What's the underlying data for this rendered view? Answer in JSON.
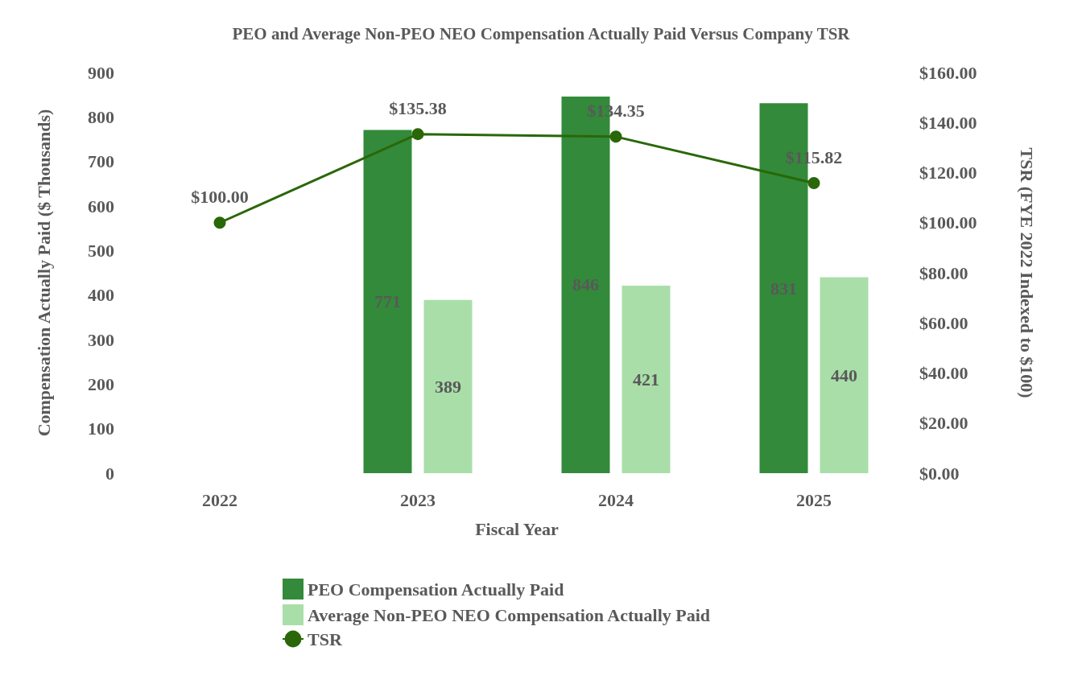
{
  "chart_data": {
    "type": "bar",
    "title": "PEO and Average Non-PEO NEO Compensation Actually Paid Versus Company TSR",
    "xlabel": "Fiscal Year",
    "ylabel": "Compensation Actually Paid ($ Thousands)",
    "y2label": "TSR (FYE 2022 Indexed to $100)",
    "categories": [
      "2022",
      "2023",
      "2024",
      "2025"
    ],
    "series": [
      {
        "name": "PEO Compensation Actually Paid",
        "color": "#338a3a",
        "values": [
          null,
          771,
          846,
          831
        ],
        "value_labels": [
          null,
          "771",
          "846",
          "831"
        ]
      },
      {
        "name": "Average Non-PEO NEO Compensation Actually Paid",
        "color": "#a9dea9",
        "values": [
          null,
          389,
          421,
          440
        ],
        "value_labels": [
          null,
          "389",
          "421",
          "440"
        ]
      },
      {
        "name": "TSR",
        "type": "line",
        "axis": "y2",
        "color": "#2a6708",
        "marker": "circle",
        "values": [
          100.0,
          135.38,
          134.35,
          115.82
        ],
        "value_labels": [
          "$100.00",
          "$135.38",
          "$134.35",
          "$115.82"
        ]
      }
    ],
    "ylim": [
      0,
      900
    ],
    "yticks": [
      0,
      100,
      200,
      300,
      400,
      500,
      600,
      700,
      800,
      900
    ],
    "y2lim": [
      0,
      160
    ],
    "y2ticks": [
      {
        "value": 0,
        "label": "$0.00"
      },
      {
        "value": 20,
        "label": "$20.00"
      },
      {
        "value": 40,
        "label": "$40.00"
      },
      {
        "value": 60,
        "label": "$60.00"
      },
      {
        "value": 80,
        "label": "$80.00"
      },
      {
        "value": 100,
        "label": "$100.00"
      },
      {
        "value": 120,
        "label": "$120.00"
      },
      {
        "value": 140,
        "label": "$140.00"
      },
      {
        "value": 160,
        "label": "$160.00"
      }
    ],
    "grid": false,
    "legend": "bottom"
  }
}
